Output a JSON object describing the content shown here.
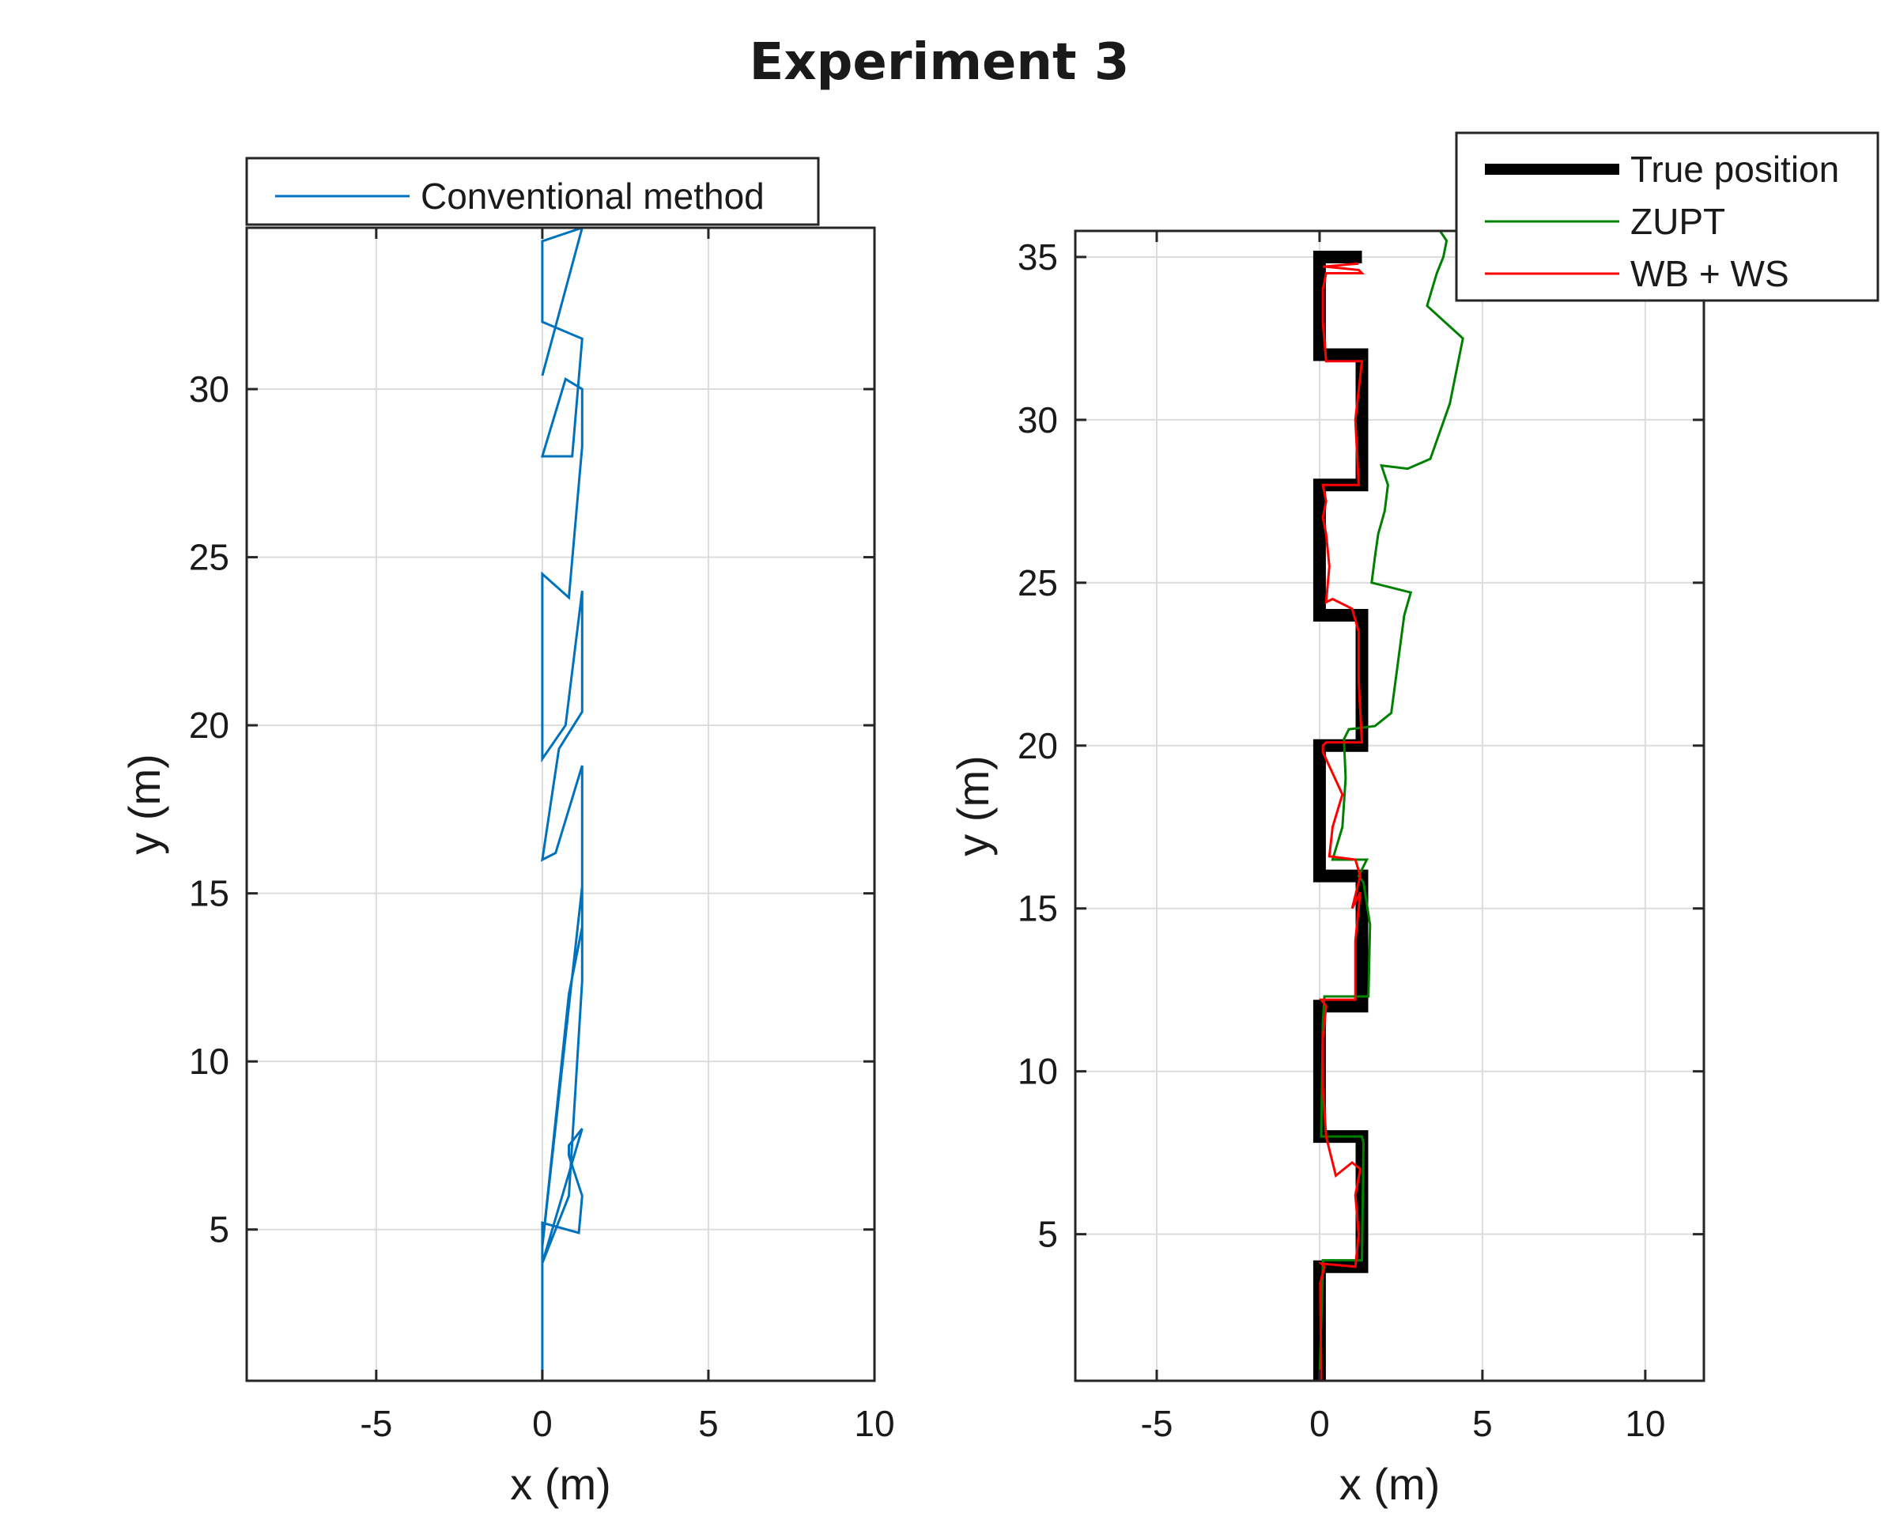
{
  "figure": {
    "title": "Experiment 3"
  },
  "chart_data": [
    {
      "type": "line",
      "xlabel": "x (m)",
      "ylabel": "y (m)",
      "xlim": [
        -8.9,
        10
      ],
      "ylim": [
        0.5,
        34.8
      ],
      "xticks": [
        -5,
        0,
        5,
        10
      ],
      "yticks": [
        5,
        10,
        15,
        20,
        25,
        30
      ],
      "grid": true,
      "legend_position": "top",
      "series": [
        {
          "name": "Conventional method",
          "color": "#0072BD",
          "width": 3,
          "x": [
            0,
            0,
            0,
            1.1,
            1.2,
            0.8,
            0.8,
            1.2,
            1.2,
            0,
            0.8,
            1.2,
            1.2,
            0,
            0.8,
            1.2,
            1.2,
            0.4,
            0,
            0.5,
            1.2,
            1.2,
            1.2,
            0.7,
            0,
            0,
            0,
            0.8,
            1.2,
            1.2,
            0.7,
            0,
            0.9,
            1.2,
            0,
            0,
            1.2,
            0
          ],
          "y": [
            0.5,
            4,
            5.2,
            4.9,
            6,
            7.2,
            7.5,
            8.0,
            8.0,
            4.0,
            6.0,
            12.4,
            15.2,
            4.5,
            12.0,
            14.0,
            18.8,
            16.2,
            16.0,
            19.3,
            20.4,
            24.0,
            24.0,
            20.0,
            19.0,
            21.3,
            24.5,
            23.8,
            28.3,
            30.0,
            30.3,
            28.0,
            28.0,
            31.5,
            32.0,
            34.4,
            34.8,
            30.4
          ]
        }
      ]
    },
    {
      "type": "line",
      "xlabel": "x (m)",
      "ylabel": "y (m)",
      "xlim": [
        -7.5,
        11.8
      ],
      "ylim": [
        0.5,
        35.8
      ],
      "xticks": [
        -5,
        0,
        5,
        10
      ],
      "yticks": [
        5,
        10,
        15,
        20,
        25,
        30,
        35
      ],
      "grid": true,
      "legend_position": "top-right",
      "series": [
        {
          "name": "True position",
          "color": "#000000",
          "width": 16,
          "x": [
            0,
            0,
            1.3,
            1.3,
            0,
            0,
            1.3,
            1.3,
            0,
            0,
            1.3,
            1.3,
            0,
            0,
            1.3,
            1.3,
            0,
            0,
            1.3,
            1.3,
            0,
            0
          ],
          "y": [
            0.5,
            4,
            4,
            8,
            8,
            12,
            12,
            16,
            16,
            20,
            20,
            24,
            24,
            28,
            28,
            32,
            32,
            35,
            35,
            35,
            35,
            35
          ]
        },
        {
          "name": "ZUPT",
          "color": "#008000",
          "width": 3,
          "x": [
            0,
            0.1,
            0.1,
            1.3,
            1.35,
            1.3,
            0.05,
            0.1,
            0.15,
            1.5,
            1.55,
            1.35,
            1.2,
            1.45,
            0.4,
            0.7,
            0.8,
            0.75,
            0.9,
            1.7,
            2.2,
            2.4,
            2.6,
            2.8,
            1.6,
            1.7,
            1.8,
            2.0,
            2.1,
            1.9,
            2.7,
            3.4,
            4.0,
            4.4,
            3.3,
            3.6,
            3.8,
            3.9,
            3.7
          ],
          "y": [
            0.5,
            4.0,
            4.2,
            4.2,
            7.8,
            8.0,
            8.0,
            11.5,
            12.3,
            12.3,
            14.5,
            15.8,
            16.0,
            16.5,
            16.5,
            17.5,
            19.0,
            20.2,
            20.5,
            20.6,
            21.0,
            22.5,
            24.0,
            24.7,
            25.0,
            25.8,
            26.5,
            27.2,
            28.0,
            28.6,
            28.5,
            28.8,
            30.5,
            32.5,
            33.5,
            34.5,
            35.0,
            35.5,
            35.8
          ]
        },
        {
          "name": "WB + WS",
          "color": "#FF0000",
          "width": 3,
          "x": [
            0.05,
            0.02,
            0.15,
            0.05,
            1.1,
            1.2,
            1.1,
            1.25,
            1.0,
            0.5,
            0.2,
            0.1,
            0.1,
            0.2,
            0.05,
            0.1,
            1.1,
            1.1,
            1.25,
            1.0,
            1.25,
            1.1,
            0.3,
            0.4,
            0.7,
            0.1,
            0.1,
            0.2,
            1.3,
            1.2,
            1.2,
            1.0,
            0.4,
            0.2,
            0.3,
            0.2,
            0.1,
            0.2,
            0.1,
            1.2,
            1.1,
            1.3,
            0.2,
            0.1,
            0.1,
            0.2,
            1.1,
            1.1,
            1.3,
            1.2,
            1.2,
            0.2,
            0.2,
            0.1,
            1.2
          ],
          "y": [
            0.5,
            3.5,
            4.0,
            4.1,
            4.0,
            5.0,
            6.2,
            7.0,
            7.2,
            6.8,
            8.0,
            9.5,
            11.0,
            12.0,
            12.2,
            12.2,
            12.2,
            14.0,
            15.5,
            15.0,
            16.0,
            16.5,
            16.6,
            17.5,
            18.5,
            19.8,
            20.0,
            20.1,
            20.1,
            22.0,
            23.5,
            24.2,
            24.5,
            24.4,
            25.5,
            26.5,
            27.0,
            27.5,
            28.0,
            28.0,
            30.0,
            31.8,
            31.8,
            33.0,
            34.0,
            34.5,
            34.5,
            34.5,
            34.5,
            34.6,
            34.6,
            34.7,
            34.7,
            34.7,
            34.8
          ]
        }
      ]
    }
  ]
}
